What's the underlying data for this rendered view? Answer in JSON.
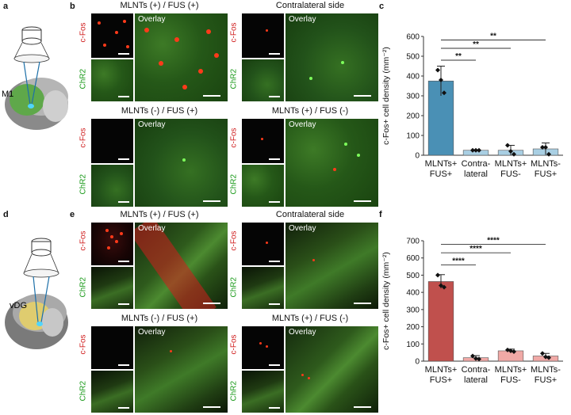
{
  "labels": {
    "a": "a",
    "b": "b",
    "c": "c",
    "d": "d",
    "e": "e",
    "f": "f",
    "m1": "M1",
    "vdg": "vDG"
  },
  "panel_b": {
    "tl": "MLNTs (+) / FUS (+)",
    "tr": "Contralateral side",
    "bl": "MLNTs (-) / FUS (+)",
    "br": "MLNTs (+) / FUS (-)"
  },
  "panel_e": {
    "tl": "MLNTs (+) / FUS (+)",
    "tr": "Contralateral side",
    "bl": "MLNTs (-) / FUS (+)",
    "br": "MLNTs (+) / FUS (-)"
  },
  "micro": {
    "cfos": "c-Fos",
    "chr2": "ChR2",
    "overlay": "Overlay"
  },
  "colors": {
    "bar_c": "#4a90b5",
    "bar_c_light": "#a9cfe3",
    "bar_f": "#c0504d",
    "bar_f_light": "#f0a9a6"
  },
  "chart_data": [
    {
      "type": "bar",
      "panel": "c",
      "categories": [
        [
          "MLNTs+",
          "FUS+"
        ],
        [
          "Contra-",
          "lateral"
        ],
        [
          "MLNTs+",
          "FUS-"
        ],
        [
          "MLNTs-",
          "FUS+"
        ]
      ],
      "values": [
        375,
        25,
        25,
        32
      ],
      "errors": [
        75,
        3,
        25,
        30
      ],
      "points": [
        [
          430,
          380,
          315
        ],
        [
          25,
          25,
          25
        ],
        [
          50,
          20,
          5
        ],
        [
          40,
          40,
          5
        ]
      ],
      "ylabel": "c-Fos+ cell density (mm⁻²)",
      "ylim": [
        0,
        600
      ],
      "yticks": [
        0,
        100,
        200,
        300,
        400,
        500,
        600
      ],
      "significance": [
        {
          "from": 0,
          "to": 1,
          "label": "**"
        },
        {
          "from": 0,
          "to": 2,
          "label": "**"
        },
        {
          "from": 0,
          "to": 3,
          "label": "**"
        }
      ]
    },
    {
      "type": "bar",
      "panel": "f",
      "categories": [
        [
          "MLNTs+",
          "FUS+"
        ],
        [
          "Contra-",
          "lateral"
        ],
        [
          "MLNTs+",
          "FUS-"
        ],
        [
          "MLNTs-",
          "FUS+"
        ]
      ],
      "values": [
        463,
        20,
        60,
        30
      ],
      "errors": [
        40,
        12,
        10,
        15
      ],
      "points": [
        [
          500,
          440,
          430
        ],
        [
          30,
          15,
          12
        ],
        [
          65,
          60,
          55
        ],
        [
          45,
          25,
          20
        ]
      ],
      "ylabel": "c-Fos+ cell density (mm⁻²)",
      "ylim": [
        0,
        700
      ],
      "yticks": [
        0,
        100,
        200,
        300,
        400,
        500,
        600,
        700
      ],
      "significance": [
        {
          "from": 0,
          "to": 1,
          "label": "****"
        },
        {
          "from": 0,
          "to": 2,
          "label": "****"
        },
        {
          "from": 0,
          "to": 3,
          "label": "****"
        }
      ]
    }
  ]
}
